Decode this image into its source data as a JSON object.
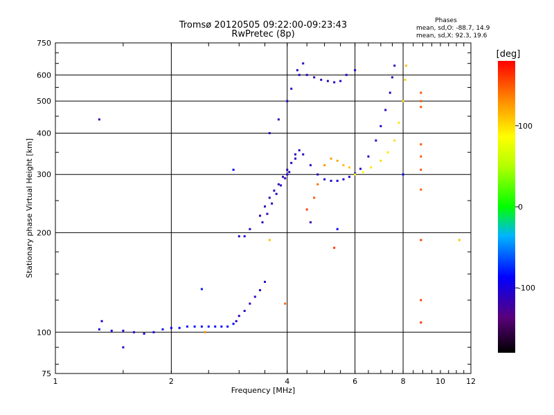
{
  "chart_data": {
    "type": "scatter",
    "title": "Tromsø 20120505 09:22:00-09:23:43",
    "subtitle": "RwPretec (8p)",
    "xlabel": "Frequency [MHz]",
    "ylabel": "Stationary phase Virtual Height [km]",
    "x_scale": "log",
    "y_scale": "log",
    "xlim": [
      1,
      12
    ],
    "ylim": [
      75,
      750
    ],
    "x_ticks": [
      1,
      2,
      4,
      6,
      8,
      10,
      12
    ],
    "x_tick_labels": [
      "1",
      "2",
      "4",
      "6",
      "8",
      "10",
      "12"
    ],
    "y_ticks": [
      75,
      100,
      200,
      300,
      400,
      500,
      600,
      750
    ],
    "y_tick_labels": [
      "75",
      "100",
      "200",
      "300",
      "400",
      "500",
      "600",
      "750"
    ],
    "grid": true,
    "phases": {
      "title": "Phases",
      "line_o": "mean, sd,O: -88.7, 14.9",
      "line_x": "mean, sd,X:  92.3, 19.6"
    },
    "colorbar": {
      "label": "[deg]",
      "range": [
        -180,
        180
      ],
      "ticks": [
        100,
        0,
        -100
      ],
      "tick_labels": [
        "100",
        "0",
        "-100"
      ]
    },
    "series": [
      {
        "segments": [
          [
            1.3,
            102,
            -100
          ],
          [
            1.32,
            108,
            -105
          ],
          [
            1.4,
            101,
            -95
          ],
          [
            1.5,
            101,
            -100
          ],
          [
            1.6,
            100,
            -98
          ],
          [
            1.7,
            99,
            -102
          ],
          [
            1.8,
            100,
            -96
          ],
          [
            1.9,
            102,
            -90
          ],
          [
            2.0,
            103,
            -88
          ],
          [
            2.1,
            103,
            -86
          ],
          [
            2.2,
            104,
            -84
          ],
          [
            2.3,
            104,
            -84
          ],
          [
            2.4,
            104,
            -84
          ],
          [
            2.5,
            104,
            -84
          ],
          [
            2.6,
            104,
            -84
          ],
          [
            2.7,
            104,
            -84
          ],
          [
            2.8,
            104,
            -84
          ],
          [
            2.9,
            106,
            -86
          ]
        ]
      },
      {
        "segments": [
          [
            2.95,
            108,
            -110
          ],
          [
            3.0,
            112,
            -115
          ],
          [
            3.1,
            116,
            -110
          ],
          [
            3.2,
            122,
            -115
          ],
          [
            3.3,
            128,
            -112
          ],
          [
            3.4,
            134,
            -110
          ],
          [
            3.5,
            142,
            -112
          ]
        ]
      },
      {
        "segments": [
          [
            3.0,
            195,
            -110
          ],
          [
            3.2,
            205,
            -110
          ],
          [
            3.4,
            225,
            -112
          ],
          [
            3.5,
            240,
            -110
          ],
          [
            3.6,
            255,
            -112
          ],
          [
            3.7,
            268,
            -110
          ],
          [
            3.8,
            280,
            -112
          ],
          [
            3.9,
            295,
            -110
          ],
          [
            4.0,
            310,
            -115
          ],
          [
            4.1,
            325,
            -110
          ],
          [
            4.2,
            345,
            -112
          ],
          [
            4.3,
            355,
            -110
          ]
        ]
      },
      {
        "segments": [
          [
            3.45,
            215,
            -110
          ],
          [
            3.55,
            228,
            -112
          ],
          [
            3.65,
            245,
            -110
          ],
          [
            3.75,
            262,
            -112
          ],
          [
            3.85,
            278,
            -110
          ],
          [
            3.95,
            292,
            -112
          ],
          [
            4.05,
            305,
            -110
          ]
        ]
      },
      {
        "segments": [
          [
            4.0,
            300,
            -105
          ],
          [
            4.2,
            335,
            -108
          ],
          [
            4.4,
            345,
            -110
          ],
          [
            4.6,
            320,
            -108
          ],
          [
            4.8,
            300,
            -105
          ],
          [
            5.0,
            290,
            -102
          ],
          [
            5.2,
            287,
            -100
          ],
          [
            5.4,
            287,
            -100
          ],
          [
            5.6,
            290,
            -100
          ],
          [
            5.8,
            295,
            -100
          ],
          [
            6.0,
            302,
            -102
          ],
          [
            6.2,
            312,
            -105
          ],
          [
            6.5,
            340,
            -108
          ],
          [
            6.8,
            380,
            -110
          ],
          [
            7.0,
            420,
            -110
          ],
          [
            7.2,
            470,
            -112
          ],
          [
            7.4,
            530,
            -110
          ],
          [
            7.5,
            590,
            -112
          ],
          [
            7.6,
            640,
            -112
          ]
        ]
      },
      {
        "segments": [
          [
            4.3,
            600,
            -110
          ],
          [
            4.5,
            600,
            -112
          ],
          [
            4.7,
            590,
            -110
          ],
          [
            4.9,
            580,
            -108
          ],
          [
            5.1,
            575,
            -110
          ],
          [
            5.3,
            570,
            -108
          ],
          [
            5.5,
            575,
            -110
          ],
          [
            5.7,
            600,
            -108
          ],
          [
            6.0,
            620,
            -110
          ]
        ]
      },
      {
        "segments": [
          [
            3.6,
            400,
            -110
          ],
          [
            3.8,
            440,
            -112
          ],
          [
            4.0,
            500,
            -110
          ],
          [
            4.1,
            545,
            -112
          ],
          [
            4.25,
            620,
            -110
          ],
          [
            4.4,
            650,
            -112
          ]
        ]
      },
      {
        "segments": [
          [
            4.5,
            235,
            160
          ],
          [
            4.7,
            255,
            150
          ],
          [
            4.8,
            280,
            140
          ],
          [
            5.0,
            320,
            130
          ],
          [
            5.2,
            335,
            125
          ],
          [
            5.4,
            330,
            120
          ],
          [
            5.6,
            320,
            115
          ],
          [
            5.8,
            315,
            110
          ]
        ]
      },
      {
        "segments": [
          [
            6.0,
            300,
            90
          ],
          [
            6.3,
            305,
            85
          ],
          [
            6.6,
            315,
            95
          ],
          [
            7.0,
            330,
            100
          ],
          [
            7.3,
            350,
            95
          ],
          [
            7.6,
            380,
            100
          ],
          [
            7.8,
            430,
            95
          ],
          [
            8.0,
            500,
            100
          ],
          [
            8.1,
            580,
            105
          ],
          [
            8.15,
            640,
            110
          ]
        ]
      },
      {
        "segments": [
          [
            8.9,
            370,
            150
          ],
          [
            8.9,
            340,
            150
          ],
          [
            8.9,
            310,
            150
          ],
          [
            8.9,
            530,
            150
          ],
          [
            8.9,
            500,
            150
          ],
          [
            8.9,
            480,
            150
          ],
          [
            8.9,
            270,
            150
          ],
          [
            8.9,
            190,
            160
          ],
          [
            8.9,
            125,
            160
          ],
          [
            8.9,
            107,
            165
          ]
        ]
      },
      {
        "segments": [
          [
            1.3,
            440,
            -120
          ],
          [
            1.5,
            90,
            -110
          ],
          [
            2.4,
            135,
            -80
          ],
          [
            2.45,
            100,
            130
          ],
          [
            3.95,
            122,
            145
          ],
          [
            3.1,
            195,
            -100
          ],
          [
            3.6,
            190,
            110
          ],
          [
            2.9,
            310,
            -90
          ],
          [
            4.6,
            215,
            -120
          ],
          [
            5.4,
            205,
            -90
          ],
          [
            5.3,
            180,
            160
          ],
          [
            8.0,
            300,
            -95
          ],
          [
            11.2,
            190,
            110
          ]
        ]
      }
    ]
  }
}
